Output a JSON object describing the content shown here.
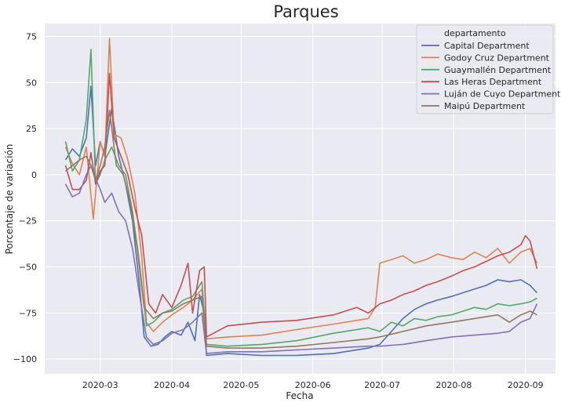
{
  "chart_data": {
    "type": "line",
    "title": "Parques",
    "xlabel": "Fecha",
    "ylabel": "Porcentaje de variación",
    "x_range": [
      "2020-02-06",
      "2020-09-14"
    ],
    "ylim": [
      -108,
      82
    ],
    "x_ticks": [
      {
        "date": "2020-03-01",
        "label": "2020-03"
      },
      {
        "date": "2020-04-01",
        "label": "2020-04"
      },
      {
        "date": "2020-05-01",
        "label": "2020-05"
      },
      {
        "date": "2020-06-01",
        "label": "2020-06"
      },
      {
        "date": "2020-07-01",
        "label": "2020-07"
      },
      {
        "date": "2020-08-01",
        "label": "2020-08"
      },
      {
        "date": "2020-09-01",
        "label": "2020-09"
      }
    ],
    "y_ticks": [
      75,
      50,
      25,
      0,
      -25,
      -50,
      -75,
      -100
    ],
    "y_tick_labels": [
      "75",
      "50",
      "25",
      "0",
      "−25",
      "−50",
      "−75",
      "−100"
    ],
    "grid": true,
    "legend": {
      "title": "departamento",
      "position": "top-right"
    },
    "series": [
      {
        "name": "Capital Department",
        "color": "#4c72b0",
        "points": [
          [
            "2020-02-15",
            8
          ],
          [
            "2020-02-18",
            14
          ],
          [
            "2020-02-21",
            10
          ],
          [
            "2020-02-24",
            20
          ],
          [
            "2020-02-26",
            48
          ],
          [
            "2020-02-28",
            5
          ],
          [
            "2020-03-01",
            18
          ],
          [
            "2020-03-03",
            10
          ],
          [
            "2020-03-06",
            36
          ],
          [
            "2020-03-09",
            10
          ],
          [
            "2020-03-12",
            -5
          ],
          [
            "2020-03-15",
            -25
          ],
          [
            "2020-03-18",
            -60
          ],
          [
            "2020-03-20",
            -88
          ],
          [
            "2020-03-23",
            -93
          ],
          [
            "2020-03-26",
            -92
          ],
          [
            "2020-03-29",
            -88
          ],
          [
            "2020-04-01",
            -85
          ],
          [
            "2020-04-05",
            -87
          ],
          [
            "2020-04-08",
            -80
          ],
          [
            "2020-04-11",
            -90
          ],
          [
            "2020-04-13",
            -65
          ],
          [
            "2020-04-15",
            -75
          ],
          [
            "2020-04-16",
            -98
          ],
          [
            "2020-04-25",
            -97
          ],
          [
            "2020-05-10",
            -98
          ],
          [
            "2020-05-25",
            -98
          ],
          [
            "2020-06-10",
            -97
          ],
          [
            "2020-06-25",
            -94
          ],
          [
            "2020-06-30",
            -92
          ],
          [
            "2020-07-05",
            -85
          ],
          [
            "2020-07-10",
            -78
          ],
          [
            "2020-07-15",
            -73
          ],
          [
            "2020-07-20",
            -70
          ],
          [
            "2020-07-25",
            -68
          ],
          [
            "2020-07-31",
            -66
          ],
          [
            "2020-08-05",
            -64
          ],
          [
            "2020-08-10",
            -62
          ],
          [
            "2020-08-15",
            -60
          ],
          [
            "2020-08-20",
            -57
          ],
          [
            "2020-08-25",
            -58
          ],
          [
            "2020-08-30",
            -57
          ],
          [
            "2020-09-03",
            -60
          ],
          [
            "2020-09-06",
            -64
          ]
        ]
      },
      {
        "name": "Godoy Cruz Department",
        "color": "#dd8452",
        "points": [
          [
            "2020-02-15",
            15
          ],
          [
            "2020-02-18",
            6
          ],
          [
            "2020-02-21",
            0
          ],
          [
            "2020-02-24",
            15
          ],
          [
            "2020-02-27",
            -24
          ],
          [
            "2020-03-01",
            18
          ],
          [
            "2020-03-03",
            10
          ],
          [
            "2020-03-05",
            74
          ],
          [
            "2020-03-07",
            22
          ],
          [
            "2020-03-10",
            20
          ],
          [
            "2020-03-13",
            8
          ],
          [
            "2020-03-16",
            -10
          ],
          [
            "2020-03-19",
            -45
          ],
          [
            "2020-03-21",
            -80
          ],
          [
            "2020-03-24",
            -85
          ],
          [
            "2020-03-28",
            -80
          ],
          [
            "2020-04-01",
            -76
          ],
          [
            "2020-04-06",
            -72
          ],
          [
            "2020-04-10",
            -68
          ],
          [
            "2020-04-14",
            -62
          ],
          [
            "2020-04-16",
            -89
          ],
          [
            "2020-04-25",
            -88
          ],
          [
            "2020-05-10",
            -87
          ],
          [
            "2020-05-25",
            -84
          ],
          [
            "2020-06-10",
            -81
          ],
          [
            "2020-06-25",
            -78
          ],
          [
            "2020-06-28",
            -72
          ],
          [
            "2020-06-30",
            -48
          ],
          [
            "2020-07-05",
            -46
          ],
          [
            "2020-07-10",
            -44
          ],
          [
            "2020-07-15",
            -48
          ],
          [
            "2020-07-20",
            -46
          ],
          [
            "2020-07-25",
            -43
          ],
          [
            "2020-07-31",
            -45
          ],
          [
            "2020-08-05",
            -46
          ],
          [
            "2020-08-10",
            -42
          ],
          [
            "2020-08-15",
            -45
          ],
          [
            "2020-08-20",
            -40
          ],
          [
            "2020-08-25",
            -48
          ],
          [
            "2020-08-30",
            -42
          ],
          [
            "2020-09-03",
            -40
          ],
          [
            "2020-09-06",
            -48
          ]
        ]
      },
      {
        "name": "Guaymallén Department",
        "color": "#55a868",
        "points": [
          [
            "2020-02-15",
            18
          ],
          [
            "2020-02-18",
            2
          ],
          [
            "2020-02-21",
            8
          ],
          [
            "2020-02-24",
            30
          ],
          [
            "2020-02-26",
            68
          ],
          [
            "2020-02-28",
            -5
          ],
          [
            "2020-03-01",
            0
          ],
          [
            "2020-03-03",
            8
          ],
          [
            "2020-03-06",
            15
          ],
          [
            "2020-03-09",
            5
          ],
          [
            "2020-03-12",
            0
          ],
          [
            "2020-03-15",
            -20
          ],
          [
            "2020-03-18",
            -48
          ],
          [
            "2020-03-21",
            -82
          ],
          [
            "2020-03-24",
            -80
          ],
          [
            "2020-03-28",
            -75
          ],
          [
            "2020-04-01",
            -73
          ],
          [
            "2020-04-06",
            -68
          ],
          [
            "2020-04-10",
            -66
          ],
          [
            "2020-04-14",
            -58
          ],
          [
            "2020-04-16",
            -92
          ],
          [
            "2020-04-25",
            -93
          ],
          [
            "2020-05-10",
            -92
          ],
          [
            "2020-05-25",
            -90
          ],
          [
            "2020-06-10",
            -86
          ],
          [
            "2020-06-25",
            -83
          ],
          [
            "2020-06-30",
            -85
          ],
          [
            "2020-07-05",
            -80
          ],
          [
            "2020-07-10",
            -82
          ],
          [
            "2020-07-15",
            -78
          ],
          [
            "2020-07-20",
            -79
          ],
          [
            "2020-07-25",
            -77
          ],
          [
            "2020-07-31",
            -76
          ],
          [
            "2020-08-05",
            -74
          ],
          [
            "2020-08-10",
            -72
          ],
          [
            "2020-08-15",
            -73
          ],
          [
            "2020-08-20",
            -70
          ],
          [
            "2020-08-25",
            -71
          ],
          [
            "2020-08-30",
            -70
          ],
          [
            "2020-09-03",
            -69
          ],
          [
            "2020-09-06",
            -67
          ]
        ]
      },
      {
        "name": "Las Heras Department",
        "color": "#c44e52",
        "points": [
          [
            "2020-02-15",
            5
          ],
          [
            "2020-02-18",
            -8
          ],
          [
            "2020-02-21",
            -8
          ],
          [
            "2020-02-24",
            -3
          ],
          [
            "2020-02-26",
            12
          ],
          [
            "2020-02-28",
            -5
          ],
          [
            "2020-03-01",
            2
          ],
          [
            "2020-03-03",
            5
          ],
          [
            "2020-03-05",
            55
          ],
          [
            "2020-03-07",
            20
          ],
          [
            "2020-03-10",
            10
          ],
          [
            "2020-03-13",
            0
          ],
          [
            "2020-03-16",
            -18
          ],
          [
            "2020-03-19",
            -33
          ],
          [
            "2020-03-22",
            -70
          ],
          [
            "2020-03-25",
            -75
          ],
          [
            "2020-03-28",
            -65
          ],
          [
            "2020-04-01",
            -72
          ],
          [
            "2020-04-05",
            -60
          ],
          [
            "2020-04-08",
            -48
          ],
          [
            "2020-04-10",
            -75
          ],
          [
            "2020-04-13",
            -52
          ],
          [
            "2020-04-15",
            -50
          ],
          [
            "2020-04-16",
            -88
          ],
          [
            "2020-04-25",
            -82
          ],
          [
            "2020-05-10",
            -80
          ],
          [
            "2020-05-25",
            -79
          ],
          [
            "2020-06-10",
            -76
          ],
          [
            "2020-06-20",
            -72
          ],
          [
            "2020-06-25",
            -75
          ],
          [
            "2020-06-30",
            -70
          ],
          [
            "2020-07-05",
            -68
          ],
          [
            "2020-07-10",
            -65
          ],
          [
            "2020-07-15",
            -63
          ],
          [
            "2020-07-20",
            -60
          ],
          [
            "2020-07-25",
            -58
          ],
          [
            "2020-07-31",
            -55
          ],
          [
            "2020-08-05",
            -52
          ],
          [
            "2020-08-10",
            -50
          ],
          [
            "2020-08-15",
            -47
          ],
          [
            "2020-08-20",
            -44
          ],
          [
            "2020-08-25",
            -42
          ],
          [
            "2020-08-30",
            -38
          ],
          [
            "2020-09-01",
            -33
          ],
          [
            "2020-09-03",
            -36
          ],
          [
            "2020-09-06",
            -51
          ]
        ]
      },
      {
        "name": "Luján de Cuyo Department",
        "color": "#8172b3",
        "points": [
          [
            "2020-02-15",
            -5
          ],
          [
            "2020-02-18",
            -12
          ],
          [
            "2020-02-21",
            -10
          ],
          [
            "2020-02-24",
            0
          ],
          [
            "2020-02-26",
            5
          ],
          [
            "2020-02-28",
            -2
          ],
          [
            "2020-03-01",
            -8
          ],
          [
            "2020-03-03",
            -15
          ],
          [
            "2020-03-06",
            -10
          ],
          [
            "2020-03-09",
            -20
          ],
          [
            "2020-03-12",
            -25
          ],
          [
            "2020-03-15",
            -40
          ],
          [
            "2020-03-18",
            -65
          ],
          [
            "2020-03-21",
            -88
          ],
          [
            "2020-03-24",
            -92
          ],
          [
            "2020-03-28",
            -90
          ],
          [
            "2020-04-01",
            -86
          ],
          [
            "2020-04-06",
            -84
          ],
          [
            "2020-04-10",
            -80
          ],
          [
            "2020-04-14",
            -75
          ],
          [
            "2020-04-16",
            -97
          ],
          [
            "2020-04-25",
            -96
          ],
          [
            "2020-05-10",
            -96
          ],
          [
            "2020-05-25",
            -95
          ],
          [
            "2020-06-10",
            -94
          ],
          [
            "2020-06-25",
            -93
          ],
          [
            "2020-06-30",
            -93
          ],
          [
            "2020-07-10",
            -92
          ],
          [
            "2020-07-20",
            -90
          ],
          [
            "2020-07-31",
            -88
          ],
          [
            "2020-08-10",
            -87
          ],
          [
            "2020-08-20",
            -86
          ],
          [
            "2020-08-25",
            -85
          ],
          [
            "2020-08-30",
            -80
          ],
          [
            "2020-09-03",
            -78
          ],
          [
            "2020-09-06",
            -70
          ]
        ]
      },
      {
        "name": "Maipú Department",
        "color": "#937860",
        "points": [
          [
            "2020-02-15",
            2
          ],
          [
            "2020-02-18",
            5
          ],
          [
            "2020-02-21",
            8
          ],
          [
            "2020-02-24",
            10
          ],
          [
            "2020-02-26",
            5
          ],
          [
            "2020-02-28",
            -3
          ],
          [
            "2020-03-01",
            5
          ],
          [
            "2020-03-03",
            15
          ],
          [
            "2020-03-05",
            35
          ],
          [
            "2020-03-08",
            5
          ],
          [
            "2020-03-11",
            0
          ],
          [
            "2020-03-14",
            -15
          ],
          [
            "2020-03-17",
            -40
          ],
          [
            "2020-03-20",
            -72
          ],
          [
            "2020-03-24",
            -78
          ],
          [
            "2020-03-28",
            -75
          ],
          [
            "2020-04-01",
            -74
          ],
          [
            "2020-04-06",
            -70
          ],
          [
            "2020-04-10",
            -68
          ],
          [
            "2020-04-14",
            -66
          ],
          [
            "2020-04-16",
            -93
          ],
          [
            "2020-04-25",
            -94
          ],
          [
            "2020-05-10",
            -94
          ],
          [
            "2020-05-25",
            -93
          ],
          [
            "2020-06-10",
            -91
          ],
          [
            "2020-06-25",
            -89
          ],
          [
            "2020-06-30",
            -88
          ],
          [
            "2020-07-10",
            -85
          ],
          [
            "2020-07-20",
            -82
          ],
          [
            "2020-07-31",
            -80
          ],
          [
            "2020-08-10",
            -78
          ],
          [
            "2020-08-20",
            -76
          ],
          [
            "2020-08-25",
            -80
          ],
          [
            "2020-08-30",
            -76
          ],
          [
            "2020-09-03",
            -74
          ],
          [
            "2020-09-06",
            -76
          ]
        ]
      }
    ]
  }
}
